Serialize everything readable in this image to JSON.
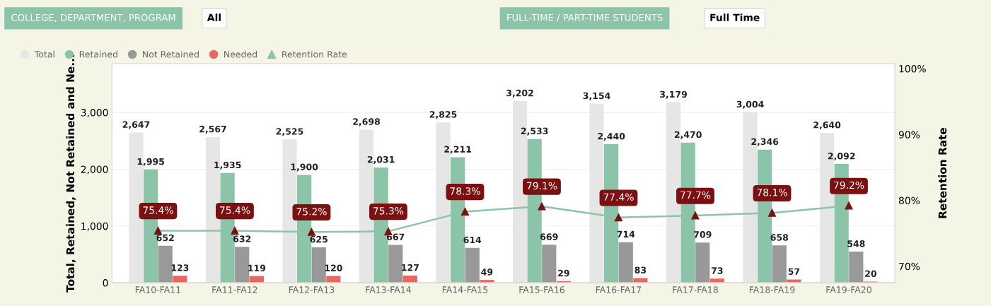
{
  "chart_data": {
    "type": "bar",
    "categories": [
      "FA10-FA11",
      "FA11-FA12",
      "FA12-FA13",
      "FA13-FA14",
      "FA14-FA15",
      "FA15-FA16",
      "FA16-FA17",
      "FA17-FA18",
      "FA18-FA19",
      "FA19-FA20"
    ],
    "series": [
      {
        "name": "Total",
        "color": "#e6e6e6",
        "values": [
          2647,
          2567,
          2525,
          2698,
          2825,
          3202,
          3154,
          3179,
          3004,
          2640
        ],
        "value_labels": [
          "2,647",
          "2,567",
          "2,525",
          "2,698",
          "2,825",
          "3,202",
          "3,154",
          "3,179",
          "3,004",
          "2,640"
        ]
      },
      {
        "name": "Retained",
        "color": "#8bc4a8",
        "values": [
          1995,
          1935,
          1900,
          2031,
          2211,
          2533,
          2440,
          2470,
          2346,
          2092
        ],
        "value_labels": [
          "1,995",
          "1,935",
          "1,900",
          "2,031",
          "2,211",
          "2,533",
          "2,440",
          "2,470",
          "2,346",
          "2,092"
        ]
      },
      {
        "name": "Not Retained",
        "color": "#999999",
        "values": [
          652,
          632,
          625,
          667,
          614,
          669,
          714,
          709,
          658,
          548
        ],
        "value_labels": [
          "652",
          "632",
          "625",
          "667",
          "614",
          "669",
          "714",
          "709",
          "658",
          "548"
        ]
      },
      {
        "name": "Needed",
        "color": "#e8685f",
        "values": [
          123,
          119,
          120,
          127,
          49,
          29,
          83,
          73,
          57,
          20
        ],
        "value_labels": [
          "123",
          "119",
          "120",
          "127",
          "49",
          "29",
          "83",
          "73",
          "57",
          "20"
        ]
      },
      {
        "name": "Retention Rate",
        "type": "line",
        "axis": "y2",
        "marker": "triangle",
        "color": "#8bc4a8",
        "colors": [
          "#7a1010",
          "#7a1010",
          "#7a1010",
          "#7a1010",
          "#7a1010",
          "#7a1010",
          "#7a1010",
          "#7a1010",
          "#7a1010",
          "#7a1010"
        ],
        "values": [
          75.4,
          75.4,
          75.2,
          75.3,
          78.3,
          79.1,
          77.4,
          77.7,
          78.1,
          79.2
        ],
        "value_labels": [
          "75.4%",
          "75.4%",
          "75.2%",
          "75.3%",
          "78.3%",
          "79.1%",
          "77.4%",
          "77.7%",
          "78.1%",
          "79.2%"
        ]
      }
    ],
    "ylabel": "Total, Retained, Not Retained and Ne...",
    "y2label": "Retention Rate",
    "ylim": [
      0,
      3860
    ],
    "yticks": [
      {
        "value": 0,
        "label": "0"
      },
      {
        "value": 1000,
        "label": "1,000"
      },
      {
        "value": 2000,
        "label": "2,000"
      },
      {
        "value": 3000,
        "label": "3,000"
      }
    ],
    "y2lim": [
      67.5,
      100.75
    ],
    "y2ticks": [
      {
        "value": 70,
        "label": "70%"
      },
      {
        "value": 80,
        "label": "80%"
      },
      {
        "value": 90,
        "label": "90%"
      },
      {
        "value": 100,
        "label": "100%"
      }
    ],
    "grid": "y",
    "legend": "top left",
    "annotations": [
      "COLLEGE, DEPARTMENT, PROGRAM",
      "All",
      "FULL-TIME / PART-TIME STUDENTS",
      "Full Time"
    ]
  }
}
